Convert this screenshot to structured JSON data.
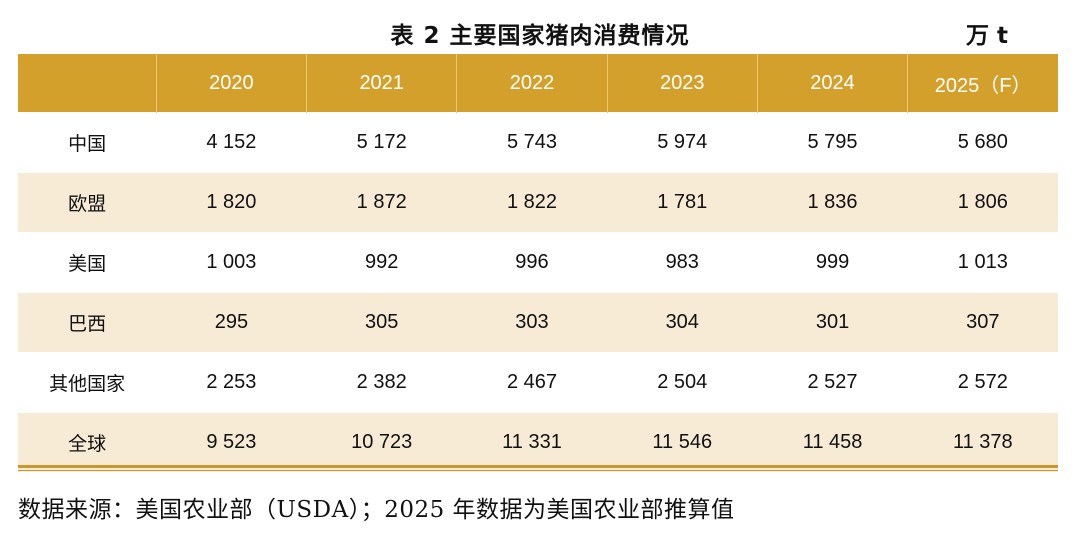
{
  "title": "表 2  主要国家猪肉消费情况",
  "unit": "万 t",
  "table": {
    "headers": [
      "",
      "2020",
      "2021",
      "2022",
      "2023",
      "2024",
      "2025（F）"
    ],
    "rows": [
      {
        "label": "中国",
        "values": [
          "4 152",
          "5 172",
          "5 743",
          "5 974",
          "5 795",
          "5 680"
        ]
      },
      {
        "label": "欧盟",
        "values": [
          "1 820",
          "1 872",
          "1 822",
          "1 781",
          "1 836",
          "1 806"
        ]
      },
      {
        "label": "美国",
        "values": [
          "1 003",
          "992",
          "996",
          "983",
          "999",
          "1 013"
        ]
      },
      {
        "label": "巴西",
        "values": [
          "295",
          "305",
          "303",
          "304",
          "301",
          "307"
        ]
      },
      {
        "label": "其他国家",
        "values": [
          "2 253",
          "2 382",
          "2 467",
          "2 504",
          "2 527",
          "2 572"
        ]
      },
      {
        "label": "全球",
        "values": [
          "9 523",
          "10 723",
          "11 331",
          "11 546",
          "11 458",
          "11 378"
        ]
      }
    ]
  },
  "source": "数据来源：美国农业部（USDA）；2025 年数据为美国农业部推算值",
  "colors": {
    "header_bg": "#d4a02c",
    "alt_row_bg": "#f7ebd6",
    "rule": "#c9972a"
  }
}
